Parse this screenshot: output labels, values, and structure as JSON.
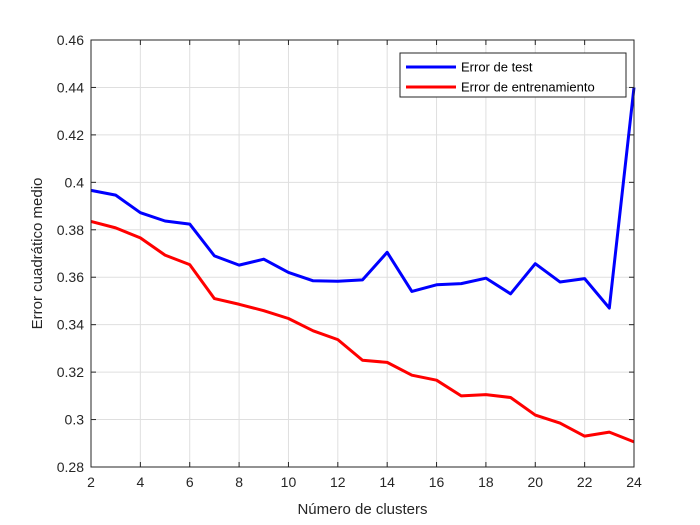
{
  "chart_data": {
    "type": "line",
    "title": "",
    "xlabel": "Número de clusters",
    "ylabel": "Error cuadrático medio",
    "xlim": [
      2,
      24
    ],
    "ylim": [
      0.28,
      0.46
    ],
    "grid": true,
    "legend_position": "top-right",
    "x": [
      2,
      3,
      4,
      5,
      6,
      7,
      8,
      9,
      10,
      11,
      12,
      13,
      14,
      15,
      16,
      17,
      18,
      19,
      20,
      21,
      22,
      23,
      24
    ],
    "xticks": [
      2,
      4,
      6,
      8,
      10,
      12,
      14,
      16,
      18,
      20,
      22,
      24
    ],
    "xtick_labels": [
      "2",
      "4",
      "6",
      "8",
      "10",
      "12",
      "14",
      "16",
      "18",
      "20",
      "22",
      "24"
    ],
    "yticks": [
      0.28,
      0.3,
      0.32,
      0.34,
      0.36,
      0.38,
      0.4,
      0.42,
      0.44,
      0.46
    ],
    "ytick_labels": [
      "0.28",
      "0.3",
      "0.32",
      "0.34",
      "0.36",
      "0.38",
      "0.4",
      "0.42",
      "0.44",
      "0.46"
    ],
    "series": [
      {
        "name": "Error de test",
        "color": "#0000ff",
        "values": [
          0.3966,
          0.3946,
          0.3872,
          0.3837,
          0.3824,
          0.369,
          0.3651,
          0.3676,
          0.362,
          0.3585,
          0.3583,
          0.3589,
          0.3705,
          0.354,
          0.3568,
          0.3573,
          0.3596,
          0.353,
          0.3657,
          0.358,
          0.3594,
          0.347,
          0.44
        ]
      },
      {
        "name": "Error de entrenamiento",
        "color": "#ff0000",
        "values": [
          0.3835,
          0.3808,
          0.3766,
          0.3693,
          0.3653,
          0.351,
          0.3486,
          0.3459,
          0.3426,
          0.3374,
          0.3337,
          0.325,
          0.3241,
          0.3187,
          0.3166,
          0.31,
          0.3105,
          0.3093,
          0.3019,
          0.2985,
          0.293,
          0.2947,
          0.2906
        ]
      }
    ]
  },
  "colors": {
    "axis": "#262626",
    "grid": "#dfdfdf",
    "background": "#ffffff"
  }
}
